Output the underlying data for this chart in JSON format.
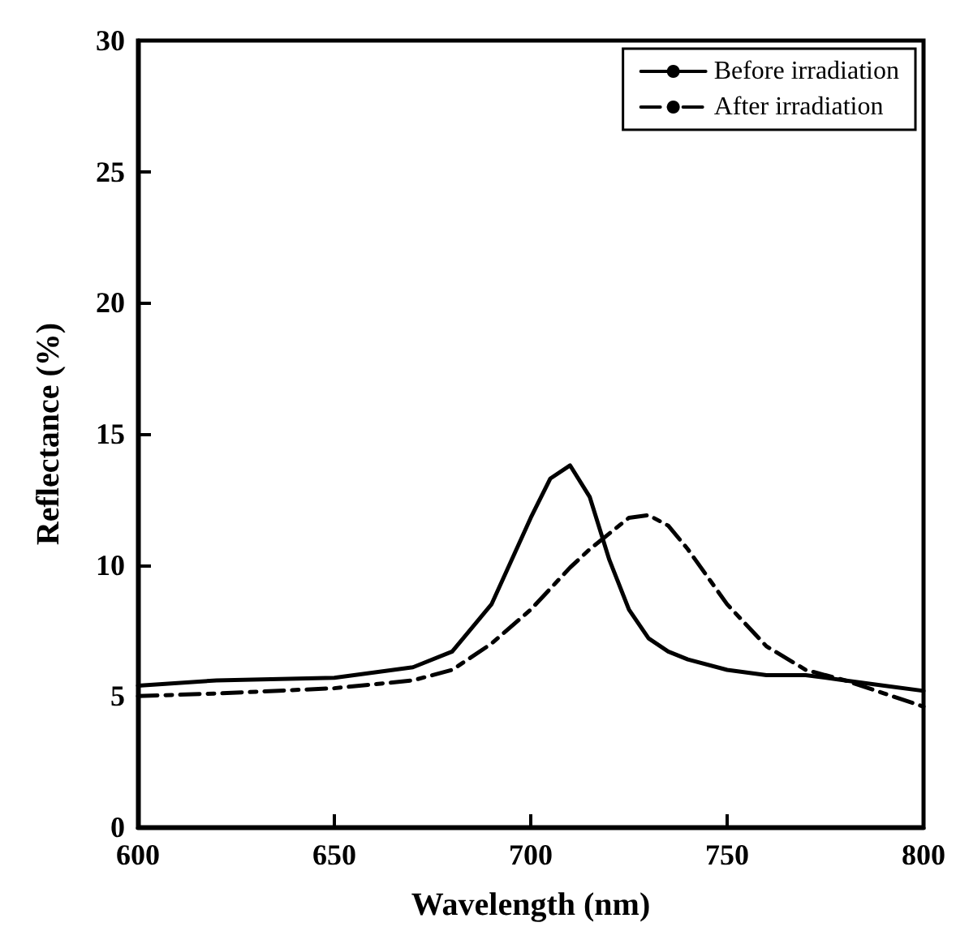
{
  "chart_data": {
    "type": "line",
    "xlabel": "Wavelength (nm)",
    "ylabel": "Reflectance (%)",
    "xlim": [
      600,
      800
    ],
    "xticks": [
      600,
      650,
      700,
      750,
      800
    ],
    "ylim": [
      0,
      30
    ],
    "yticks": [
      0,
      5,
      10,
      15,
      20,
      25,
      30
    ],
    "grid": false,
    "legend": "top right",
    "marker": "none",
    "x": [
      600,
      620,
      650,
      670,
      680,
      690,
      700,
      705,
      710,
      715,
      720,
      725,
      730,
      735,
      740,
      750,
      760,
      770,
      780,
      790,
      800
    ],
    "series": [
      {
        "name": "Before irradiation",
        "color": "#000000",
        "line_style": "solid",
        "values": [
          5.4,
          5.6,
          5.7,
          6.1,
          6.7,
          8.5,
          11.8,
          13.3,
          13.8,
          12.6,
          10.2,
          8.3,
          7.2,
          6.7,
          6.4,
          6.0,
          5.8,
          5.8,
          5.6,
          5.4,
          5.2
        ]
      },
      {
        "name": "After irradiation",
        "color": "#000000",
        "line_style": "dashed",
        "values": [
          5.0,
          5.1,
          5.3,
          5.6,
          6.0,
          7.0,
          8.3,
          9.1,
          9.9,
          10.6,
          11.2,
          11.8,
          11.9,
          11.5,
          10.6,
          8.5,
          6.9,
          6.0,
          5.6,
          5.1,
          4.6
        ]
      }
    ]
  }
}
